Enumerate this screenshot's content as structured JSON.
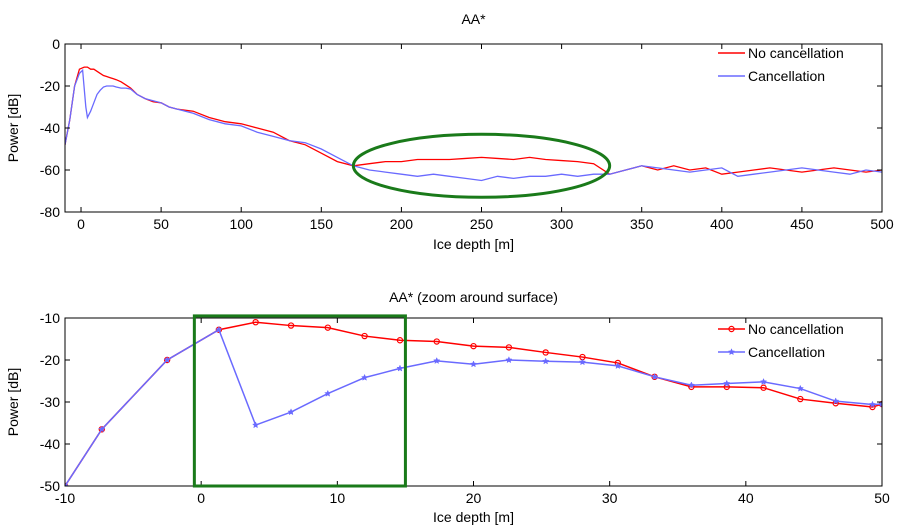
{
  "chart_data": [
    {
      "type": "line",
      "title": "AA*",
      "xlabel": "Ice depth [m]",
      "ylabel": "Power [dB]",
      "xlim": [
        -10,
        500
      ],
      "ylim": [
        -80,
        0
      ],
      "xticks": [
        0,
        50,
        100,
        150,
        200,
        250,
        300,
        350,
        400,
        450,
        500
      ],
      "yticks": [
        0,
        -20,
        -40,
        -60,
        -80
      ],
      "legend": {
        "placement": "top-right",
        "entries": [
          "No cancellation",
          "Cancellation"
        ]
      },
      "grid": false,
      "annotation": {
        "shape": "ellipse",
        "color": "#1a7a1a",
        "x_range": [
          170,
          330
        ],
        "y_range": [
          -73,
          -43
        ]
      },
      "series": [
        {
          "name": "No cancellation",
          "color": "#ff0000",
          "marker": "none",
          "x": [
            -10,
            -7,
            -4,
            -1,
            2,
            4,
            6,
            8,
            10,
            12,
            14,
            16,
            18,
            20,
            22,
            25,
            28,
            31,
            35,
            40,
            45,
            50,
            55,
            60,
            70,
            80,
            90,
            100,
            110,
            120,
            130,
            140,
            150,
            160,
            170,
            180,
            190,
            200,
            210,
            220,
            230,
            240,
            250,
            260,
            270,
            280,
            290,
            300,
            310,
            320,
            330,
            340,
            350,
            360,
            370,
            380,
            390,
            400,
            410,
            420,
            430,
            440,
            450,
            460,
            470,
            480,
            490,
            500
          ],
          "y": [
            -48,
            -36,
            -20,
            -12,
            -11,
            -11,
            -12,
            -12,
            -13,
            -14,
            -15,
            -15.5,
            -16,
            -16.5,
            -17,
            -18,
            -19.5,
            -21,
            -24,
            -26,
            -27.5,
            -28,
            -30,
            -31,
            -32,
            -35,
            -37,
            -38,
            -40,
            -42,
            -46,
            -48,
            -52,
            -56,
            -58,
            -57,
            -56,
            -56,
            -55,
            -55,
            -55,
            -54.5,
            -54,
            -54.5,
            -55,
            -54,
            -55,
            -55.5,
            -56,
            -57,
            -62,
            -60,
            -58,
            -60,
            -58,
            -60,
            -59,
            -62,
            -61,
            -60,
            -59,
            -60,
            -61,
            -60,
            -59,
            -60,
            -61,
            -60
          ]
        },
        {
          "name": "Cancellation",
          "color": "#6a6aff",
          "marker": "none",
          "x": [
            -10,
            -7,
            -4,
            -1,
            1,
            3,
            4,
            6,
            8,
            10,
            12,
            14,
            16,
            18,
            20,
            22,
            25,
            28,
            31,
            35,
            40,
            45,
            50,
            55,
            60,
            70,
            80,
            90,
            100,
            110,
            120,
            130,
            140,
            150,
            160,
            170,
            180,
            190,
            200,
            210,
            220,
            230,
            240,
            250,
            260,
            270,
            280,
            290,
            300,
            310,
            320,
            330,
            340,
            350,
            360,
            370,
            380,
            390,
            400,
            410,
            420,
            430,
            440,
            450,
            460,
            470,
            480,
            490,
            500
          ],
          "y": [
            -48,
            -36,
            -20,
            -14,
            -12.5,
            -30,
            -35,
            -32,
            -28,
            -24,
            -22,
            -20.5,
            -20,
            -20,
            -20,
            -20.5,
            -21,
            -21,
            -21.5,
            -24,
            -26,
            -27,
            -28,
            -30,
            -31,
            -33,
            -36,
            -38,
            -39,
            -42,
            -44,
            -46,
            -47,
            -50,
            -54,
            -58,
            -60,
            -61,
            -62,
            -63,
            -62,
            -63,
            -64,
            -65,
            -63,
            -64,
            -63,
            -63,
            -62,
            -63,
            -62,
            -62,
            -60,
            -58,
            -59,
            -60,
            -61,
            -60,
            -59,
            -63,
            -62,
            -61,
            -60,
            -59,
            -60,
            -61,
            -62,
            -60,
            -61
          ]
        }
      ]
    },
    {
      "type": "line",
      "title": "AA* (zoom around surface)",
      "xlabel": "Ice depth [m]",
      "ylabel": "Power [dB]",
      "xlim": [
        -10,
        50
      ],
      "ylim": [
        -50,
        -10
      ],
      "xticks": [
        -10,
        0,
        10,
        20,
        30,
        40,
        50
      ],
      "yticks": [
        -10,
        -20,
        -30,
        -40,
        -50
      ],
      "legend": {
        "placement": "top-right",
        "entries": [
          "No cancellation",
          "Cancellation"
        ]
      },
      "grid": false,
      "annotation": {
        "shape": "rectangle",
        "color": "#1a7a1a",
        "x_range": [
          -0.5,
          15
        ],
        "y_range": [
          -50,
          -9.5
        ]
      },
      "series": [
        {
          "name": "No cancellation",
          "color": "#ff0000",
          "marker": "circle",
          "x": [
            -10,
            -7.3,
            -2.5,
            1.3,
            4,
            6.6,
            9.3,
            12,
            14.6,
            17.3,
            20,
            22.6,
            25.3,
            28,
            30.6,
            33.3,
            36,
            38.6,
            41.3,
            44,
            46.6,
            49.3,
            50
          ],
          "y": [
            -50,
            -36.5,
            -20,
            -12.8,
            -11,
            -11.8,
            -12.3,
            -14.3,
            -15.3,
            -15.6,
            -16.7,
            -17,
            -18.2,
            -19.3,
            -20.7,
            -24,
            -26.4,
            -26.4,
            -26.6,
            -29.3,
            -30.3,
            -31.2,
            -30.5
          ]
        },
        {
          "name": "Cancellation",
          "color": "#6a6aff",
          "marker": "star",
          "x": [
            -10,
            -7.3,
            -2.5,
            1.3,
            4,
            6.6,
            9.3,
            12,
            14.6,
            17.3,
            20,
            22.6,
            25.3,
            28,
            30.6,
            33.3,
            36,
            38.6,
            41.3,
            44,
            46.6,
            49.3,
            50
          ],
          "y": [
            -50,
            -36.5,
            -20,
            -12.8,
            -35.5,
            -32.4,
            -28,
            -24.2,
            -22,
            -20.2,
            -21,
            -20,
            -20.3,
            -20.5,
            -21.4,
            -24,
            -26,
            -25.6,
            -25.2,
            -26.8,
            -29.8,
            -30.6,
            -30.5
          ]
        }
      ]
    }
  ]
}
